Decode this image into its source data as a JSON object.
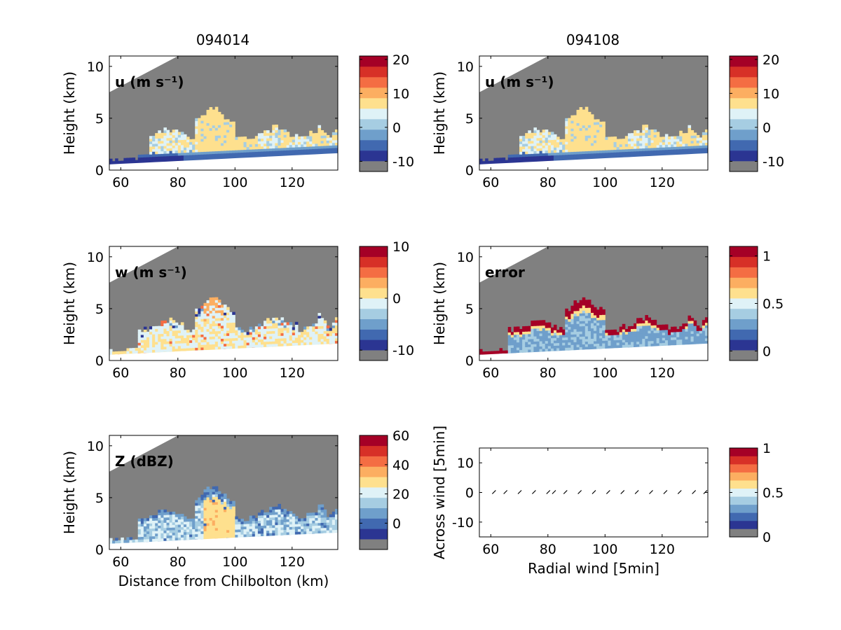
{
  "figure": {
    "column_titles": [
      "094014",
      "094108"
    ],
    "xlabel_bottom": "Distance from Chilbolton (km)",
    "ylabel": "Height (km)"
  },
  "colormap": [
    "#808080",
    "#2b3592",
    "#4169b0",
    "#6f9fcb",
    "#a6cde2",
    "#dff2f7",
    "#fee08e",
    "#fcae61",
    "#f46d43",
    "#d73027",
    "#a50026"
  ],
  "chart_data": [
    {
      "type": "heatmap",
      "id": "u1",
      "label": "u (m s⁻¹)",
      "column_title": "094014",
      "xlim": [
        56,
        136
      ],
      "ylim": [
        0,
        11
      ],
      "x_ticks": [
        60,
        80,
        100,
        120
      ],
      "y_ticks": [
        0,
        5,
        10
      ],
      "colorbar": {
        "ticks": [
          "20",
          "10",
          "0",
          "-10"
        ],
        "tick_values": [
          20,
          10,
          0,
          -10
        ],
        "range": [
          -13,
          21
        ]
      },
      "ylabel": "Height (km)"
    },
    {
      "type": "heatmap",
      "id": "u2",
      "label": "u (m s⁻¹)",
      "column_title": "094108",
      "xlim": [
        56,
        136
      ],
      "ylim": [
        0,
        11
      ],
      "x_ticks": [
        60,
        80,
        100,
        120
      ],
      "y_ticks": [
        0,
        5,
        10
      ],
      "colorbar": {
        "ticks": [
          "20",
          "10",
          "0",
          "-10"
        ],
        "tick_values": [
          20,
          10,
          0,
          -10
        ],
        "range": [
          -13,
          21
        ]
      },
      "ylabel": "Height (km)"
    },
    {
      "type": "heatmap",
      "id": "w",
      "label": "w (m s⁻¹)",
      "xlim": [
        56,
        136
      ],
      "ylim": [
        0,
        11
      ],
      "x_ticks": [
        60,
        80,
        100,
        120
      ],
      "y_ticks": [
        0,
        5,
        10
      ],
      "colorbar": {
        "ticks": [
          "10",
          "0",
          "-10"
        ],
        "tick_values": [
          10,
          0,
          -10
        ],
        "range": [
          -12,
          10
        ]
      },
      "ylabel": "Height (km)"
    },
    {
      "type": "heatmap",
      "id": "error",
      "label": "error",
      "xlim": [
        56,
        136
      ],
      "ylim": [
        0,
        11
      ],
      "x_ticks": [
        60,
        80,
        100,
        120
      ],
      "y_ticks": [
        0,
        5,
        10
      ],
      "colorbar": {
        "ticks": [
          "1",
          "0.5",
          "0"
        ],
        "tick_values": [
          1,
          0.5,
          0
        ],
        "range": [
          -0.1,
          1.1
        ]
      },
      "ylabel": "Height (km)"
    },
    {
      "type": "heatmap",
      "id": "z",
      "label": "Z (dBZ)",
      "xlim": [
        56,
        136
      ],
      "ylim": [
        0,
        11
      ],
      "x_ticks": [
        60,
        80,
        100,
        120
      ],
      "y_ticks": [
        0,
        5,
        10
      ],
      "colorbar": {
        "ticks": [
          "60",
          "40",
          "20",
          "0"
        ],
        "tick_values": [
          60,
          40,
          20,
          0
        ],
        "range": [
          -18,
          60
        ]
      },
      "ylabel": "Height (km)",
      "xlabel": "Distance from Chilbolton (km)"
    },
    {
      "type": "scatter",
      "id": "vectors",
      "xlim": [
        56,
        136
      ],
      "ylim": [
        -15,
        15
      ],
      "x_ticks": [
        60,
        80,
        100,
        120
      ],
      "y_ticks": [
        -10,
        0,
        10
      ],
      "xlabel": "Radial wind [5min]",
      "ylabel": "Across wind [5min]",
      "points_x": [
        61,
        65,
        70,
        75,
        80,
        82,
        86,
        91,
        96,
        101,
        106,
        111,
        116,
        121,
        126,
        131,
        135
      ],
      "colorbar": {
        "ticks": [
          "1",
          "0.5",
          "0"
        ],
        "tick_values": [
          1,
          0.5,
          0
        ],
        "range": [
          0,
          1
        ]
      }
    }
  ]
}
